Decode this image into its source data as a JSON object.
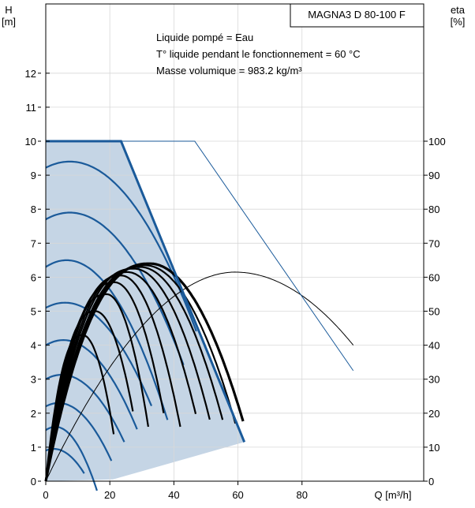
{
  "chart_data": {
    "type": "line",
    "title": "MAGNA3 D 80-100 F",
    "annotations": [
      "Liquide pompé = Eau",
      "T° liquide pendant le fonctionnement = 60 °C",
      "Masse volumique = 983.2 kg/m³"
    ],
    "y_left": {
      "label_line1": "H",
      "label_line2": "[m]",
      "ticks": [
        0,
        1,
        2,
        3,
        4,
        5,
        6,
        7,
        8,
        9,
        10,
        11,
        12
      ],
      "range": [
        0,
        13.2
      ]
    },
    "y_right": {
      "label_line1": "eta",
      "label_line2": "[%]",
      "ticks": [
        0,
        10,
        20,
        30,
        40,
        50,
        60,
        70,
        80,
        90,
        100
      ],
      "range": [
        0,
        100
      ]
    },
    "x": {
      "label": "Q [m³/h]",
      "ticks": [
        0,
        20,
        40,
        60,
        80
      ],
      "range": [
        0,
        118
      ]
    },
    "colors": {
      "head": "#1a5a9a",
      "region": "#c5d5e5",
      "efficiency": "#000000",
      "frame": "#000000"
    },
    "operating_region": [
      [
        0,
        10
      ],
      [
        23.5,
        10
      ],
      [
        62,
        1.15
      ],
      [
        21,
        0.05
      ],
      [
        0,
        0
      ]
    ],
    "max_curve_head": [
      [
        0,
        10
      ],
      [
        23.5,
        10
      ],
      [
        62,
        1.15
      ]
    ],
    "max_curve_head_dual": [
      [
        0,
        10
      ],
      [
        46.5,
        10
      ],
      [
        96,
        3.25
      ]
    ],
    "head_series": [
      {
        "h0": 9.22,
        "peak_q": 7.5,
        "peak_h": 9.4
      },
      {
        "h0": 7.7,
        "peak_q": 7.5,
        "peak_h": 7.9
      },
      {
        "h0": 6.3,
        "peak_q": 6.5,
        "peak_h": 6.5
      },
      {
        "h0": 5.1,
        "peak_q": 6.0,
        "peak_h": 5.25
      },
      {
        "h0": 4.0,
        "peak_q": 5.5,
        "peak_h": 4.15
      },
      {
        "h0": 3.0,
        "peak_q": 5.0,
        "peak_h": 3.13
      },
      {
        "h0": 2.2,
        "peak_q": 4.0,
        "peak_h": 2.3
      },
      {
        "h0": 1.5,
        "peak_q": 3.0,
        "peak_h": 1.6
      },
      {
        "h0": 0.9,
        "peak_q": 2.5,
        "peak_h": 0.95
      }
    ],
    "head_series_end_q": [
      47.0,
      43.0,
      38.0,
      33.0,
      28.5,
      24.5,
      20.5,
      16.0,
      12.0
    ],
    "efficiency_series": [
      {
        "peak_q": 11.5,
        "peak_eta": 43,
        "end_q": 21.5,
        "end_eta": 12
      },
      {
        "peak_q": 15.5,
        "peak_eta": 50,
        "end_q": 27.5,
        "end_eta": 19
      },
      {
        "peak_q": 19.0,
        "peak_eta": 55,
        "end_q": 32.0,
        "end_eta": 16
      },
      {
        "peak_q": 21.5,
        "peak_eta": 58.5,
        "end_q": 37.0,
        "end_eta": 19
      },
      {
        "peak_q": 23.5,
        "peak_eta": 60.5,
        "end_q": 42.0,
        "end_eta": 16
      },
      {
        "peak_q": 25.5,
        "peak_eta": 61.5,
        "end_q": 47.0,
        "end_eta": 19
      },
      {
        "peak_q": 27.5,
        "peak_eta": 62.5,
        "end_q": 51.5,
        "end_eta": 17
      },
      {
        "peak_q": 29.5,
        "peak_eta": 63.0,
        "end_q": 55.5,
        "end_eta": 17
      },
      {
        "peak_q": 31.0,
        "peak_eta": 63.5,
        "end_q": 59.5,
        "end_eta": 16
      },
      {
        "peak_q": 32.5,
        "peak_eta": 64.0,
        "end_q": 61.8,
        "end_eta": 17,
        "bold": true
      }
    ],
    "efficiency_dual": {
      "peak_q": 59.0,
      "peak_eta": 61.5,
      "end_q": 96.0,
      "end_eta": 40
    }
  }
}
